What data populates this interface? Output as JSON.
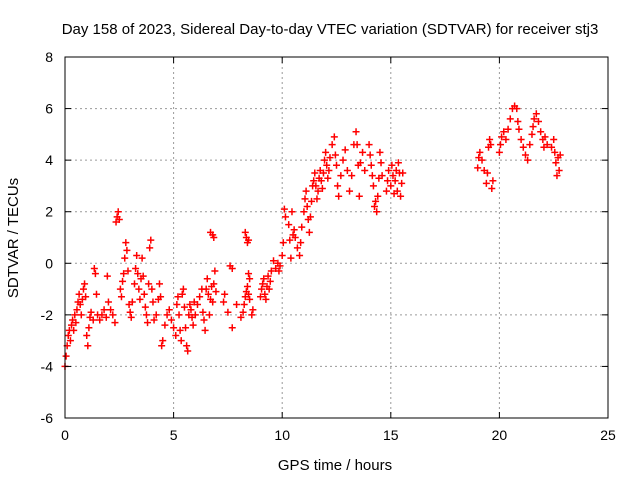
{
  "chart_data": {
    "type": "scatter",
    "title": "Day 158 of 2023, Sidereal Day-to-day VTEC variation (SDTVAR) for receiver stj3",
    "xlabel": "GPS time / hours",
    "ylabel": "SDTVAR / TECUs",
    "xlim": [
      0,
      25
    ],
    "ylim": [
      -6,
      8
    ],
    "xticks": [
      0,
      5,
      10,
      15,
      20,
      25
    ],
    "yticks": [
      -6,
      -4,
      -2,
      0,
      2,
      4,
      6,
      8
    ],
    "grid": true,
    "marker": "+",
    "color": "#ff0000",
    "series": [
      {
        "name": "SDTVAR",
        "points": [
          [
            0.0,
            -4.0
          ],
          [
            0.05,
            -3.6
          ],
          [
            0.1,
            -3.2
          ],
          [
            0.15,
            -2.8
          ],
          [
            0.2,
            -2.6
          ],
          [
            0.25,
            -3.0
          ],
          [
            0.3,
            -2.4
          ],
          [
            0.35,
            -2.2
          ],
          [
            0.4,
            -2.6
          ],
          [
            0.45,
            -2.0
          ],
          [
            0.5,
            -2.3
          ],
          [
            0.55,
            -1.8
          ],
          [
            0.6,
            -1.5
          ],
          [
            0.65,
            -1.2
          ],
          [
            0.7,
            -1.6
          ],
          [
            0.75,
            -2.0
          ],
          [
            0.8,
            -1.4
          ],
          [
            0.85,
            -1.0
          ],
          [
            0.9,
            -0.8
          ],
          [
            0.95,
            -1.3
          ],
          [
            1.0,
            -2.8
          ],
          [
            1.05,
            -3.2
          ],
          [
            1.1,
            -2.5
          ],
          [
            1.15,
            -2.1
          ],
          [
            1.2,
            -1.9
          ],
          [
            1.3,
            -2.2
          ],
          [
            1.35,
            -0.2
          ],
          [
            1.4,
            -0.4
          ],
          [
            1.45,
            -1.2
          ],
          [
            1.5,
            -2.0
          ],
          [
            1.6,
            -2.2
          ],
          [
            1.7,
            -2.0
          ],
          [
            1.8,
            -1.8
          ],
          [
            1.9,
            -2.1
          ],
          [
            1.95,
            -0.5
          ],
          [
            2.0,
            -1.5
          ],
          [
            2.1,
            -1.8
          ],
          [
            2.2,
            -2.0
          ],
          [
            2.3,
            -2.3
          ],
          [
            2.35,
            1.6
          ],
          [
            2.4,
            1.8
          ],
          [
            2.45,
            2.0
          ],
          [
            2.5,
            1.7
          ],
          [
            2.55,
            -1.0
          ],
          [
            2.6,
            -1.3
          ],
          [
            2.65,
            -0.7
          ],
          [
            2.7,
            -0.4
          ],
          [
            2.75,
            0.2
          ],
          [
            2.8,
            0.8
          ],
          [
            2.85,
            0.5
          ],
          [
            2.9,
            -0.3
          ],
          [
            2.95,
            -1.6
          ],
          [
            3.0,
            -1.9
          ],
          [
            3.05,
            -2.1
          ],
          [
            3.1,
            -1.5
          ],
          [
            3.2,
            -0.8
          ],
          [
            3.25,
            -0.2
          ],
          [
            3.3,
            0.3
          ],
          [
            3.35,
            -0.4
          ],
          [
            3.4,
            -1.0
          ],
          [
            3.45,
            -1.4
          ],
          [
            3.5,
            -0.6
          ],
          [
            3.55,
            0.2
          ],
          [
            3.6,
            -0.5
          ],
          [
            3.65,
            -1.2
          ],
          [
            3.7,
            -1.7
          ],
          [
            3.75,
            -2.0
          ],
          [
            3.8,
            -2.3
          ],
          [
            3.85,
            -0.8
          ],
          [
            3.9,
            0.6
          ],
          [
            3.95,
            0.9
          ],
          [
            4.0,
            -1.0
          ],
          [
            4.05,
            -1.5
          ],
          [
            4.1,
            -2.2
          ],
          [
            4.2,
            -2.0
          ],
          [
            4.3,
            -1.4
          ],
          [
            4.35,
            -0.8
          ],
          [
            4.4,
            -1.3
          ],
          [
            4.45,
            -3.2
          ],
          [
            4.5,
            -3.0
          ],
          [
            4.6,
            -2.4
          ],
          [
            4.7,
            -2.0
          ],
          [
            4.8,
            -1.8
          ],
          [
            4.9,
            -2.2
          ],
          [
            5.0,
            -2.5
          ],
          [
            5.1,
            -2.8
          ],
          [
            5.15,
            -1.6
          ],
          [
            5.2,
            -1.3
          ],
          [
            5.25,
            -2.0
          ],
          [
            5.3,
            -2.6
          ],
          [
            5.35,
            -3.0
          ],
          [
            5.4,
            -1.2
          ],
          [
            5.45,
            -1.0
          ],
          [
            5.5,
            -1.7
          ],
          [
            5.55,
            -2.5
          ],
          [
            5.6,
            -3.2
          ],
          [
            5.65,
            -3.4
          ],
          [
            5.7,
            -2.0
          ],
          [
            5.75,
            -1.6
          ],
          [
            5.8,
            -1.8
          ],
          [
            5.85,
            -2.1
          ],
          [
            5.9,
            -2.4
          ],
          [
            5.95,
            -1.5
          ],
          [
            6.0,
            -2.0
          ],
          [
            6.1,
            -1.6
          ],
          [
            6.2,
            -1.3
          ],
          [
            6.3,
            -1.0
          ],
          [
            6.35,
            -1.9
          ],
          [
            6.4,
            -2.2
          ],
          [
            6.45,
            -2.6
          ],
          [
            6.5,
            -1.0
          ],
          [
            6.55,
            -0.6
          ],
          [
            6.6,
            -1.2
          ],
          [
            6.65,
            -2.0
          ],
          [
            6.7,
            -1.4
          ],
          [
            6.75,
            -0.9
          ],
          [
            6.8,
            -1.5
          ],
          [
            6.85,
            -0.8
          ],
          [
            6.9,
            -0.3
          ],
          [
            6.95,
            -1.1
          ],
          [
            6.7,
            1.2
          ],
          [
            6.8,
            1.1
          ],
          [
            6.85,
            1.0
          ],
          [
            7.6,
            -0.1
          ],
          [
            7.7,
            -0.2
          ],
          [
            7.3,
            -1.5
          ],
          [
            7.35,
            -1.2
          ],
          [
            7.7,
            -2.5
          ],
          [
            7.5,
            -1.9
          ],
          [
            7.9,
            -1.6
          ],
          [
            8.1,
            -2.1
          ],
          [
            8.2,
            -1.9
          ],
          [
            8.25,
            -1.6
          ],
          [
            8.3,
            -1.3
          ],
          [
            8.35,
            -1.1
          ],
          [
            8.4,
            -0.9
          ],
          [
            8.45,
            -1.2
          ],
          [
            8.5,
            -1.4
          ],
          [
            8.45,
            -0.4
          ],
          [
            8.5,
            -0.6
          ],
          [
            8.3,
            1.2
          ],
          [
            8.35,
            1.0
          ],
          [
            8.4,
            0.8
          ],
          [
            8.45,
            0.9
          ],
          [
            8.6,
            -2.0
          ],
          [
            8.65,
            -1.8
          ],
          [
            9.0,
            -1.3
          ],
          [
            9.05,
            -1.0
          ],
          [
            9.1,
            -0.8
          ],
          [
            9.15,
            -0.6
          ],
          [
            9.2,
            -1.2
          ],
          [
            9.25,
            -1.4
          ],
          [
            9.3,
            -0.9
          ],
          [
            9.35,
            -0.5
          ],
          [
            9.4,
            -1.0
          ],
          [
            9.45,
            -0.7
          ],
          [
            9.5,
            -0.3
          ],
          [
            9.6,
            0.1
          ],
          [
            9.7,
            -0.2
          ],
          [
            9.8,
            0.0
          ],
          [
            9.85,
            -0.3
          ],
          [
            9.9,
            -0.1
          ],
          [
            10.0,
            0.3
          ],
          [
            10.05,
            0.8
          ],
          [
            10.1,
            2.1
          ],
          [
            10.15,
            1.8
          ],
          [
            10.3,
            1.5
          ],
          [
            10.35,
            0.9
          ],
          [
            10.4,
            0.2
          ],
          [
            10.5,
            1.1
          ],
          [
            10.45,
            2.0
          ],
          [
            10.55,
            1.3
          ],
          [
            10.6,
            1.0
          ],
          [
            10.7,
            0.6
          ],
          [
            10.8,
            0.3
          ],
          [
            10.85,
            0.8
          ],
          [
            10.9,
            1.4
          ],
          [
            11.0,
            2.0
          ],
          [
            11.05,
            2.5
          ],
          [
            11.1,
            2.8
          ],
          [
            11.15,
            2.2
          ],
          [
            11.2,
            1.7
          ],
          [
            11.25,
            1.2
          ],
          [
            11.3,
            1.8
          ],
          [
            11.35,
            2.4
          ],
          [
            11.4,
            3.0
          ],
          [
            11.45,
            3.2
          ],
          [
            11.5,
            3.5
          ],
          [
            11.55,
            3.0
          ],
          [
            11.6,
            2.5
          ],
          [
            11.65,
            2.8
          ],
          [
            11.7,
            3.3
          ],
          [
            11.75,
            3.6
          ],
          [
            11.8,
            3.2
          ],
          [
            11.85,
            2.9
          ],
          [
            11.9,
            3.5
          ],
          [
            11.95,
            4.0
          ],
          [
            12.0,
            4.3
          ],
          [
            12.05,
            3.8
          ],
          [
            12.1,
            3.3
          ],
          [
            12.15,
            3.6
          ],
          [
            12.2,
            4.1
          ],
          [
            12.3,
            4.6
          ],
          [
            12.4,
            4.9
          ],
          [
            12.45,
            4.2
          ],
          [
            12.5,
            3.8
          ],
          [
            12.55,
            3.0
          ],
          [
            12.6,
            2.6
          ],
          [
            12.7,
            3.4
          ],
          [
            12.8,
            4.0
          ],
          [
            12.9,
            4.4
          ],
          [
            13.0,
            3.6
          ],
          [
            13.1,
            2.8
          ],
          [
            13.2,
            3.4
          ],
          [
            13.3,
            4.6
          ],
          [
            13.4,
            5.1
          ],
          [
            13.45,
            4.6
          ],
          [
            13.5,
            3.8
          ],
          [
            13.55,
            2.6
          ],
          [
            13.6,
            3.9
          ],
          [
            13.7,
            4.3
          ],
          [
            13.8,
            3.6
          ],
          [
            14.0,
            4.6
          ],
          [
            14.05,
            4.2
          ],
          [
            14.1,
            3.8
          ],
          [
            14.15,
            3.4
          ],
          [
            14.2,
            3.0
          ],
          [
            14.25,
            2.2
          ],
          [
            14.3,
            2.4
          ],
          [
            14.35,
            2.0
          ],
          [
            14.4,
            2.6
          ],
          [
            14.45,
            3.3
          ],
          [
            14.5,
            4.3
          ],
          [
            14.55,
            3.9
          ],
          [
            14.6,
            3.4
          ],
          [
            14.8,
            2.8
          ],
          [
            14.85,
            3.2
          ],
          [
            14.9,
            3.6
          ],
          [
            15.0,
            3.0
          ],
          [
            15.05,
            3.8
          ],
          [
            15.1,
            3.4
          ],
          [
            15.15,
            2.7
          ],
          [
            15.2,
            3.2
          ],
          [
            15.25,
            3.6
          ],
          [
            15.3,
            2.8
          ],
          [
            15.35,
            3.9
          ],
          [
            15.4,
            3.5
          ],
          [
            15.45,
            2.6
          ],
          [
            15.5,
            3.1
          ],
          [
            15.55,
            3.5
          ],
          [
            19.0,
            3.7
          ],
          [
            19.05,
            4.1
          ],
          [
            19.1,
            4.3
          ],
          [
            19.2,
            4.0
          ],
          [
            19.3,
            3.6
          ],
          [
            19.4,
            3.1
          ],
          [
            19.45,
            3.5
          ],
          [
            19.5,
            4.5
          ],
          [
            19.55,
            4.8
          ],
          [
            19.6,
            4.6
          ],
          [
            19.65,
            2.9
          ],
          [
            19.7,
            3.2
          ],
          [
            20.0,
            4.3
          ],
          [
            20.05,
            4.6
          ],
          [
            20.1,
            4.9
          ],
          [
            20.2,
            5.1
          ],
          [
            20.3,
            4.8
          ],
          [
            20.4,
            5.2
          ],
          [
            20.5,
            5.6
          ],
          [
            20.6,
            6.0
          ],
          [
            20.7,
            6.1
          ],
          [
            20.8,
            6.0
          ],
          [
            20.85,
            5.5
          ],
          [
            20.9,
            5.2
          ],
          [
            21.0,
            4.8
          ],
          [
            21.1,
            4.5
          ],
          [
            21.2,
            4.2
          ],
          [
            21.3,
            4.0
          ],
          [
            21.4,
            4.6
          ],
          [
            21.5,
            5.0
          ],
          [
            21.55,
            5.3
          ],
          [
            21.6,
            5.6
          ],
          [
            21.7,
            5.8
          ],
          [
            21.8,
            5.5
          ],
          [
            21.9,
            5.1
          ],
          [
            22.0,
            4.8
          ],
          [
            22.05,
            4.5
          ],
          [
            22.1,
            4.9
          ],
          [
            22.2,
            4.6
          ],
          [
            22.4,
            4.5
          ],
          [
            22.5,
            4.8
          ],
          [
            22.55,
            4.3
          ],
          [
            22.6,
            3.9
          ],
          [
            22.65,
            3.4
          ],
          [
            22.7,
            4.1
          ],
          [
            22.75,
            3.6
          ],
          [
            22.8,
            4.2
          ]
        ]
      }
    ]
  }
}
